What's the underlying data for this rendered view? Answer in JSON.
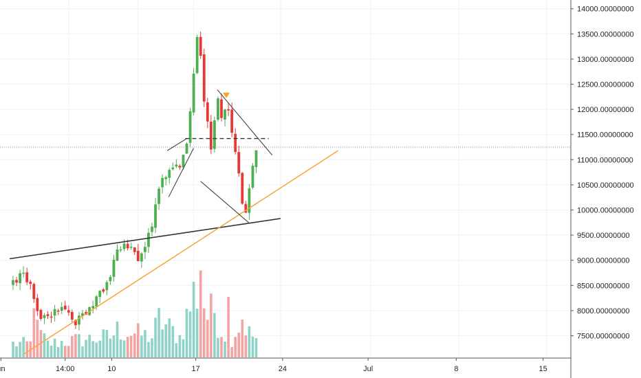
{
  "colors": {
    "background": "#ffffff",
    "grid": "#eef1f5",
    "axis": "#555555",
    "up": "#4caf50",
    "down": "#e53935",
    "volume_up": "#8fd3c8",
    "volume_down": "#f4a3a3",
    "trendline": "#333333",
    "support_line": "#f7a53a",
    "current_price_line": "#888888",
    "marker": "#f5a623"
  },
  "icons": [
    "down-triangle-marker-icon"
  ],
  "chart_data": {
    "type": "candlestick",
    "title": "",
    "xlabel": "",
    "ylabel": "",
    "ylim": [
      7100,
      14150
    ],
    "grid": true,
    "y_ticks": [
      "14000.00000000",
      "13500.00000000",
      "13000.00000000",
      "12500.00000000",
      "12000.00000000",
      "11500.00000000",
      "11000.00000000",
      "10500.00000000",
      "10000.00000000",
      "9500.00000000",
      "9000.00000000",
      "8500.00000000",
      "8000.00000000",
      "7500.00000000"
    ],
    "x_tick_labels": [
      "un",
      "14:00",
      "10",
      "17",
      "24",
      "Jul",
      "8",
      "15"
    ],
    "price_anchors": [
      {
        "t": 0,
        "price": 8550
      },
      {
        "t": 1.5,
        "price": 8800
      },
      {
        "t": 2.6,
        "price": 8450
      },
      {
        "t": 3.2,
        "price": 8000
      },
      {
        "t": 4.0,
        "price": 7900
      },
      {
        "t": 5.5,
        "price": 7950
      },
      {
        "t": 7.0,
        "price": 8050
      },
      {
        "t": 8.0,
        "price": 7950
      },
      {
        "t": 9.0,
        "price": 7750
      },
      {
        "t": 10.0,
        "price": 7900
      },
      {
        "t": 11.0,
        "price": 8050
      },
      {
        "t": 12.0,
        "price": 8250
      },
      {
        "t": 13.0,
        "price": 8400
      },
      {
        "t": 14.0,
        "price": 8700
      },
      {
        "t": 15.0,
        "price": 9250
      },
      {
        "t": 16.0,
        "price": 9300
      },
      {
        "t": 17.0,
        "price": 9200
      },
      {
        "t": 18.0,
        "price": 9000
      },
      {
        "t": 19.0,
        "price": 9300
      },
      {
        "t": 20.0,
        "price": 9700
      },
      {
        "t": 21.0,
        "price": 10500
      },
      {
        "t": 22.0,
        "price": 10700
      },
      {
        "t": 23.0,
        "price": 10800
      },
      {
        "t": 24.0,
        "price": 10900
      },
      {
        "t": 25.0,
        "price": 11300
      },
      {
        "t": 26.0,
        "price": 12700
      },
      {
        "t": 26.7,
        "price": 13700
      },
      {
        "t": 27.3,
        "price": 12400
      },
      {
        "t": 28.0,
        "price": 11800
      },
      {
        "t": 28.6,
        "price": 11100
      },
      {
        "t": 29.3,
        "price": 12300
      },
      {
        "t": 30.0,
        "price": 11900
      },
      {
        "t": 30.8,
        "price": 12100
      },
      {
        "t": 31.5,
        "price": 11500
      },
      {
        "t": 32.3,
        "price": 10900
      },
      {
        "t": 33.0,
        "price": 10200
      },
      {
        "t": 33.6,
        "price": 9800
      },
      {
        "t": 34.1,
        "price": 10500
      },
      {
        "t": 34.7,
        "price": 11000
      },
      {
        "t": 35.3,
        "price": 11300
      }
    ],
    "volume_anchors": [
      {
        "t": 0,
        "v": 0.2
      },
      {
        "t": 2.5,
        "v": 0.2
      },
      {
        "t": 3.0,
        "v": 0.6
      },
      {
        "t": 3.5,
        "v": 0.4
      },
      {
        "t": 5.0,
        "v": 0.2
      },
      {
        "t": 9.0,
        "v": 0.25
      },
      {
        "t": 14.0,
        "v": 0.3
      },
      {
        "t": 15.0,
        "v": 0.4
      },
      {
        "t": 20.0,
        "v": 0.3
      },
      {
        "t": 21.0,
        "v": 0.55
      },
      {
        "t": 24.0,
        "v": 0.3
      },
      {
        "t": 26.0,
        "v": 0.9
      },
      {
        "t": 27.0,
        "v": 1.0
      },
      {
        "t": 28.0,
        "v": 0.6
      },
      {
        "t": 29.0,
        "v": 0.7
      },
      {
        "t": 30.0,
        "v": 0.4
      },
      {
        "t": 31.5,
        "v": 0.3
      },
      {
        "t": 33.0,
        "v": 0.55
      },
      {
        "t": 34.0,
        "v": 0.35
      },
      {
        "t": 35.3,
        "v": 0.25
      }
    ],
    "volume_spikes": [
      {
        "t": 2.8,
        "v": 0.65
      },
      {
        "t": 26.2,
        "v": 1.0
      },
      {
        "t": 26.9,
        "v": 1.15
      },
      {
        "t": 30.9,
        "v": 0.8
      },
      {
        "t": 32.8,
        "v": 0.5
      }
    ],
    "current_price": 11250,
    "trendlines": [
      {
        "name": "resistance-trendline",
        "role": "trendline",
        "from": {
          "t": -0.5,
          "price": 9030
        },
        "to": {
          "t": 38.5,
          "price": 9830
        }
      },
      {
        "name": "support-trendline",
        "role": "support_line",
        "from": {
          "t": 1.5,
          "price": 7130
        },
        "to": {
          "t": 46.8,
          "price": 11180
        }
      },
      {
        "name": "channel-upper-line",
        "role": "trendline",
        "from": {
          "t": 22.2,
          "price": 11180
        },
        "to": {
          "t": 25.0,
          "price": 11420
        }
      },
      {
        "name": "channel-lower-line",
        "role": "trendline",
        "from": {
          "t": 22.4,
          "price": 10260
        },
        "to": {
          "t": 26.0,
          "price": 11230
        }
      },
      {
        "name": "wedge-upper-line",
        "role": "trendline",
        "from": {
          "t": 29.4,
          "price": 12390
        },
        "to": {
          "t": 37.3,
          "price": 11090
        }
      },
      {
        "name": "wedge-lower-line",
        "role": "trendline",
        "from": {
          "t": 27.0,
          "price": 10570
        },
        "to": {
          "t": 34.0,
          "price": 9740
        }
      }
    ],
    "neckline": {
      "from": {
        "t": 24.8,
        "price": 11420
      },
      "to": {
        "t": 36.8,
        "price": 11420
      }
    },
    "marker": {
      "t": 30.7,
      "price": 12250
    }
  }
}
